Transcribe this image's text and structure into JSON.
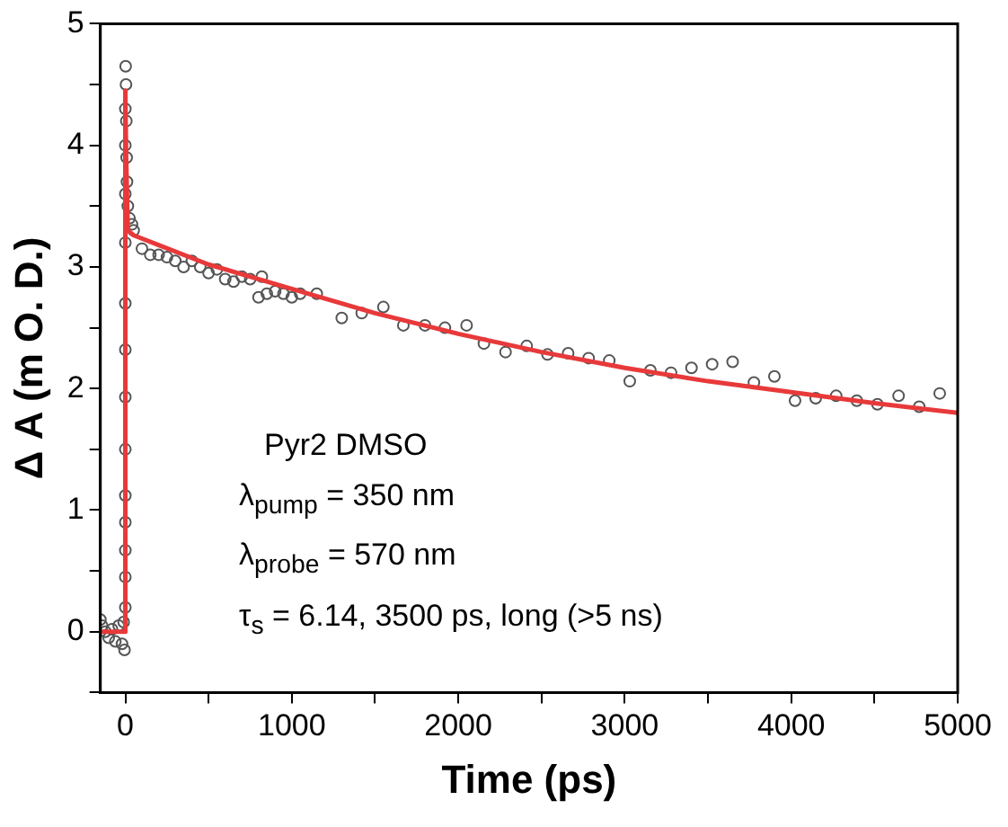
{
  "chart_data": {
    "type": "scatter",
    "xlabel": "Time (ps)",
    "ylabel": "Δ A (m O. D.)",
    "annotations": [
      "Pyr2 DMSO",
      "λ$_{pump}$ = 350 nm",
      "λ$_{probe}$ = 570 nm",
      "τ$_{s}$ = 6.14, 3500 ps, long (>5 ns)"
    ],
    "xlim": [
      -150,
      5000
    ],
    "ylim": [
      -0.5,
      5
    ],
    "xticks": [
      0,
      {
        "value": 500,
        "label": null
      },
      1000,
      {
        "value": 1500,
        "label": null
      },
      2000,
      {
        "value": 2500,
        "label": null
      },
      3000,
      {
        "value": 3500,
        "label": null
      },
      4000,
      {
        "value": 4500,
        "label": null
      },
      5000
    ],
    "yticks": [
      {
        "value": -0.5,
        "label": null
      },
      0,
      {
        "value": 0.5,
        "label": null
      },
      1,
      {
        "value": 1.5,
        "label": null
      },
      2,
      {
        "value": 2.5,
        "label": null
      },
      3,
      {
        "value": 3.5,
        "label": null
      },
      4,
      {
        "value": 4.5,
        "label": null
      },
      5
    ],
    "grid": false,
    "legend": false,
    "series": [
      {
        "type": "scatter",
        "marker": "circle",
        "color": "#555555",
        "x": [
          -150,
          -140,
          -120,
          -100,
          -80,
          -60,
          -40,
          -20,
          -10,
          -5,
          0,
          0,
          0,
          0,
          0,
          0,
          0,
          0,
          0,
          0,
          0,
          0,
          0,
          2,
          4,
          6,
          8,
          10,
          15,
          25,
          40,
          50,
          100,
          150,
          200,
          250,
          300,
          350,
          400,
          450,
          500,
          550,
          600,
          650,
          700,
          750,
          800,
          820,
          850,
          900,
          950,
          1000,
          1050,
          1150,
          1300,
          1420,
          1550,
          1670,
          1800,
          1920,
          2050,
          2154,
          2284,
          2411,
          2536,
          2660,
          2783,
          2907,
          3030,
          3154,
          3278,
          3401,
          3525,
          3648,
          3776,
          3899,
          4023,
          4147,
          4270,
          4394,
          4518,
          4645,
          4769,
          4892
        ],
        "values": [
          0.1,
          0.05,
          0,
          -0.05,
          0.02,
          -0.08,
          0.05,
          -0.1,
          0.08,
          -0.15,
          0.2,
          0.45,
          0.67,
          0.9,
          1.12,
          1.5,
          1.93,
          2.32,
          2.7,
          3.2,
          3.6,
          4.0,
          4.3,
          4.65,
          4.5,
          4.2,
          3.9,
          3.7,
          3.5,
          3.4,
          3.35,
          3.3,
          3.15,
          3.1,
          3.1,
          3.08,
          3.05,
          3.0,
          3.05,
          3.0,
          2.95,
          2.98,
          2.9,
          2.88,
          2.92,
          2.9,
          2.75,
          2.92,
          2.78,
          2.8,
          2.78,
          2.75,
          2.78,
          2.78,
          2.58,
          2.62,
          2.67,
          2.52,
          2.52,
          2.5,
          2.52,
          2.37,
          2.3,
          2.35,
          2.28,
          2.29,
          2.25,
          2.23,
          2.06,
          2.15,
          2.13,
          2.17,
          2.2,
          2.22,
          2.05,
          2.1,
          1.9,
          1.92,
          1.94,
          1.9,
          1.87,
          1.94,
          1.85,
          1.96
        ]
      },
      {
        "type": "line",
        "marker": "none",
        "line_style": "solid",
        "color": "#e8393a",
        "x": [
          -150,
          0,
          0,
          5,
          15,
          50,
          200,
          500,
          1000,
          1500,
          2000,
          2500,
          3000,
          3500,
          4000,
          4500,
          5000
        ],
        "values": [
          0,
          0,
          4.45,
          3.9,
          3.3,
          3.26,
          3.18,
          3.02,
          2.82,
          2.62,
          2.45,
          2.3,
          2.17,
          2.06,
          1.97,
          1.88,
          1.8
        ]
      }
    ]
  }
}
